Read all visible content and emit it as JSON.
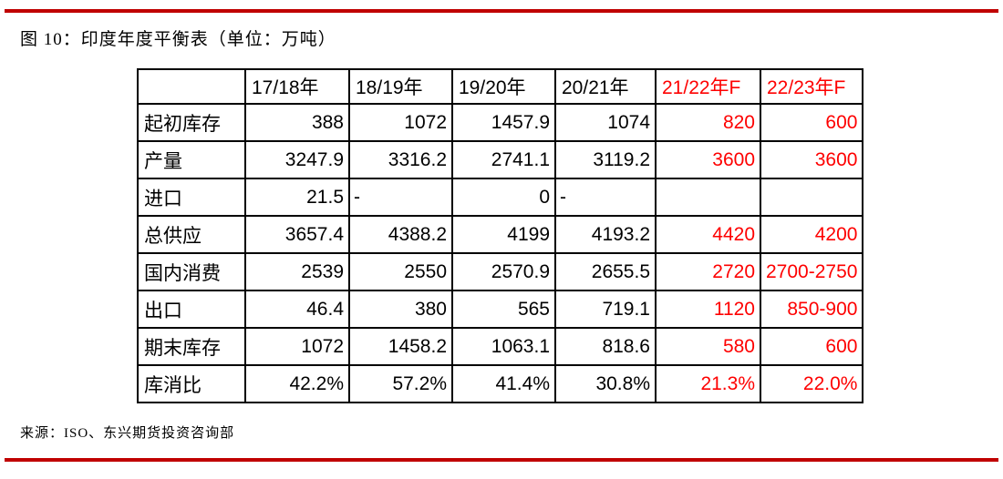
{
  "header": {
    "title": "图 10：印度年度平衡表（单位：万吨）"
  },
  "footer": {
    "source": "来源：ISO、东兴期货投资咨询部"
  },
  "colors": {
    "rule_red": "#c00000",
    "forecast_red": "#fe0000",
    "table_border": "#000000",
    "text": "#000000",
    "background": "#ffffff"
  },
  "chart_data": {
    "type": "table",
    "figure_label": "图 10",
    "title": "印度年度平衡表",
    "unit": "万吨",
    "columns": [
      "",
      "17/18年",
      "18/19年",
      "19/20年",
      "20/21年",
      "21/22年F",
      "22/23年F"
    ],
    "forecast_column_start_index": 5,
    "rows": [
      {
        "label": "起初库存",
        "values": [
          "388",
          "1072",
          "1457.9",
          "1074",
          "820",
          "600"
        ]
      },
      {
        "label": "产量",
        "values": [
          "3247.9",
          "3316.2",
          "2741.1",
          "3119.2",
          "3600",
          "3600"
        ]
      },
      {
        "label": "进口",
        "values": [
          "21.5",
          "-",
          "0",
          "-",
          "",
          ""
        ]
      },
      {
        "label": "总供应",
        "values": [
          "3657.4",
          "4388.2",
          "4199",
          "4193.2",
          "4420",
          "4200"
        ]
      },
      {
        "label": "国内消费",
        "values": [
          "2539",
          "2550",
          "2570.9",
          "2655.5",
          "2720",
          "2700-2750"
        ]
      },
      {
        "label": "出口",
        "values": [
          "46.4",
          "380",
          "565",
          "719.1",
          "1120",
          "850-900"
        ]
      },
      {
        "label": "期末库存",
        "values": [
          "1072",
          "1458.2",
          "1063.1",
          "818.6",
          "580",
          "600"
        ]
      },
      {
        "label": "库消比",
        "values": [
          "42.2%",
          "57.2%",
          "41.4%",
          "30.8%",
          "21.3%",
          "22.0%"
        ]
      }
    ]
  }
}
